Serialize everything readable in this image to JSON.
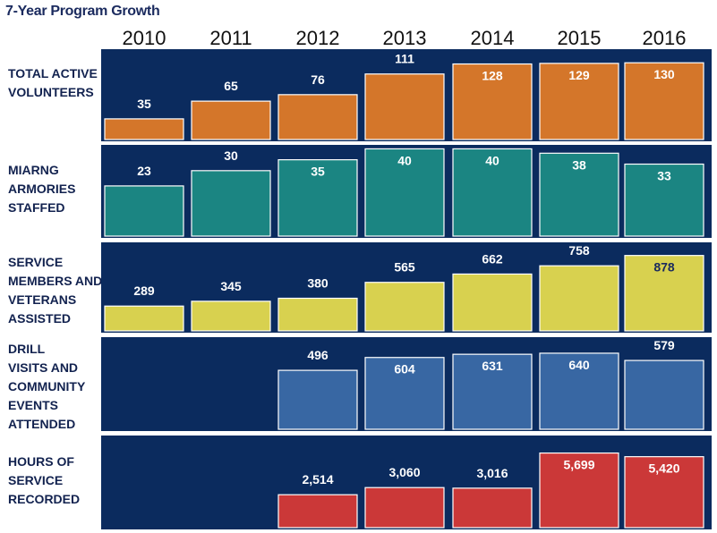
{
  "chart_data": {
    "type": "bar",
    "title": "7-Year Program Growth",
    "categories": [
      "2010",
      "2011",
      "2012",
      "2013",
      "2014",
      "2015",
      "2016"
    ],
    "panels": [
      {
        "label_lines": [
          "TOTAL ACTIVE",
          "VOLUNTEERS"
        ],
        "color": "#d4762a",
        "values": [
          35,
          65,
          76,
          111,
          128,
          129,
          130
        ],
        "value_labels": [
          "35",
          "65",
          "76",
          "111",
          "128",
          "129",
          "130"
        ],
        "ylim": [
          0,
          150
        ]
      },
      {
        "label_lines": [
          "MIARNG",
          "ARMORIES",
          "STAFFED"
        ],
        "color": "#1b8582",
        "values": [
          23,
          30,
          35,
          40,
          40,
          38,
          33
        ],
        "value_labels": [
          "23",
          "30",
          "35",
          "40",
          "40",
          "38",
          "33"
        ],
        "ylim": [
          0,
          41
        ]
      },
      {
        "label_lines": [
          "SERVICE",
          "MEMBERS AND",
          "VETERANS",
          "ASSISTED"
        ],
        "color": "#d8d14f",
        "values": [
          289,
          345,
          380,
          565,
          662,
          758,
          878
        ],
        "value_labels": [
          "289",
          "345",
          "380",
          "565",
          "662",
          "758",
          "878"
        ],
        "ylim": [
          0,
          1010
        ]
      },
      {
        "label_lines": [
          "DRILL",
          "VISITS AND",
          "COMMUNITY",
          "EVENTS",
          "ATTENDED"
        ],
        "color": "#3867a3",
        "values": [
          null,
          null,
          496,
          604,
          631,
          640,
          579
        ],
        "value_labels": [
          "",
          "",
          "496",
          "604",
          "631",
          "640",
          "579"
        ],
        "ylim": [
          0,
          760
        ]
      },
      {
        "label_lines": [
          "HOURS OF",
          "SERVICE",
          "RECORDED"
        ],
        "color": "#cb3838",
        "values": [
          null,
          null,
          2514,
          3060,
          3016,
          5699,
          5420
        ],
        "value_labels": [
          "",
          "",
          "2,514",
          "3,060",
          "3,016",
          "5,699",
          "5,420"
        ],
        "ylim": [
          0,
          6900
        ]
      }
    ],
    "panel_background": "#0b2b5e",
    "value_label_color_dark": "#1a2a5e",
    "value_label_color_light": "#ffffff"
  }
}
